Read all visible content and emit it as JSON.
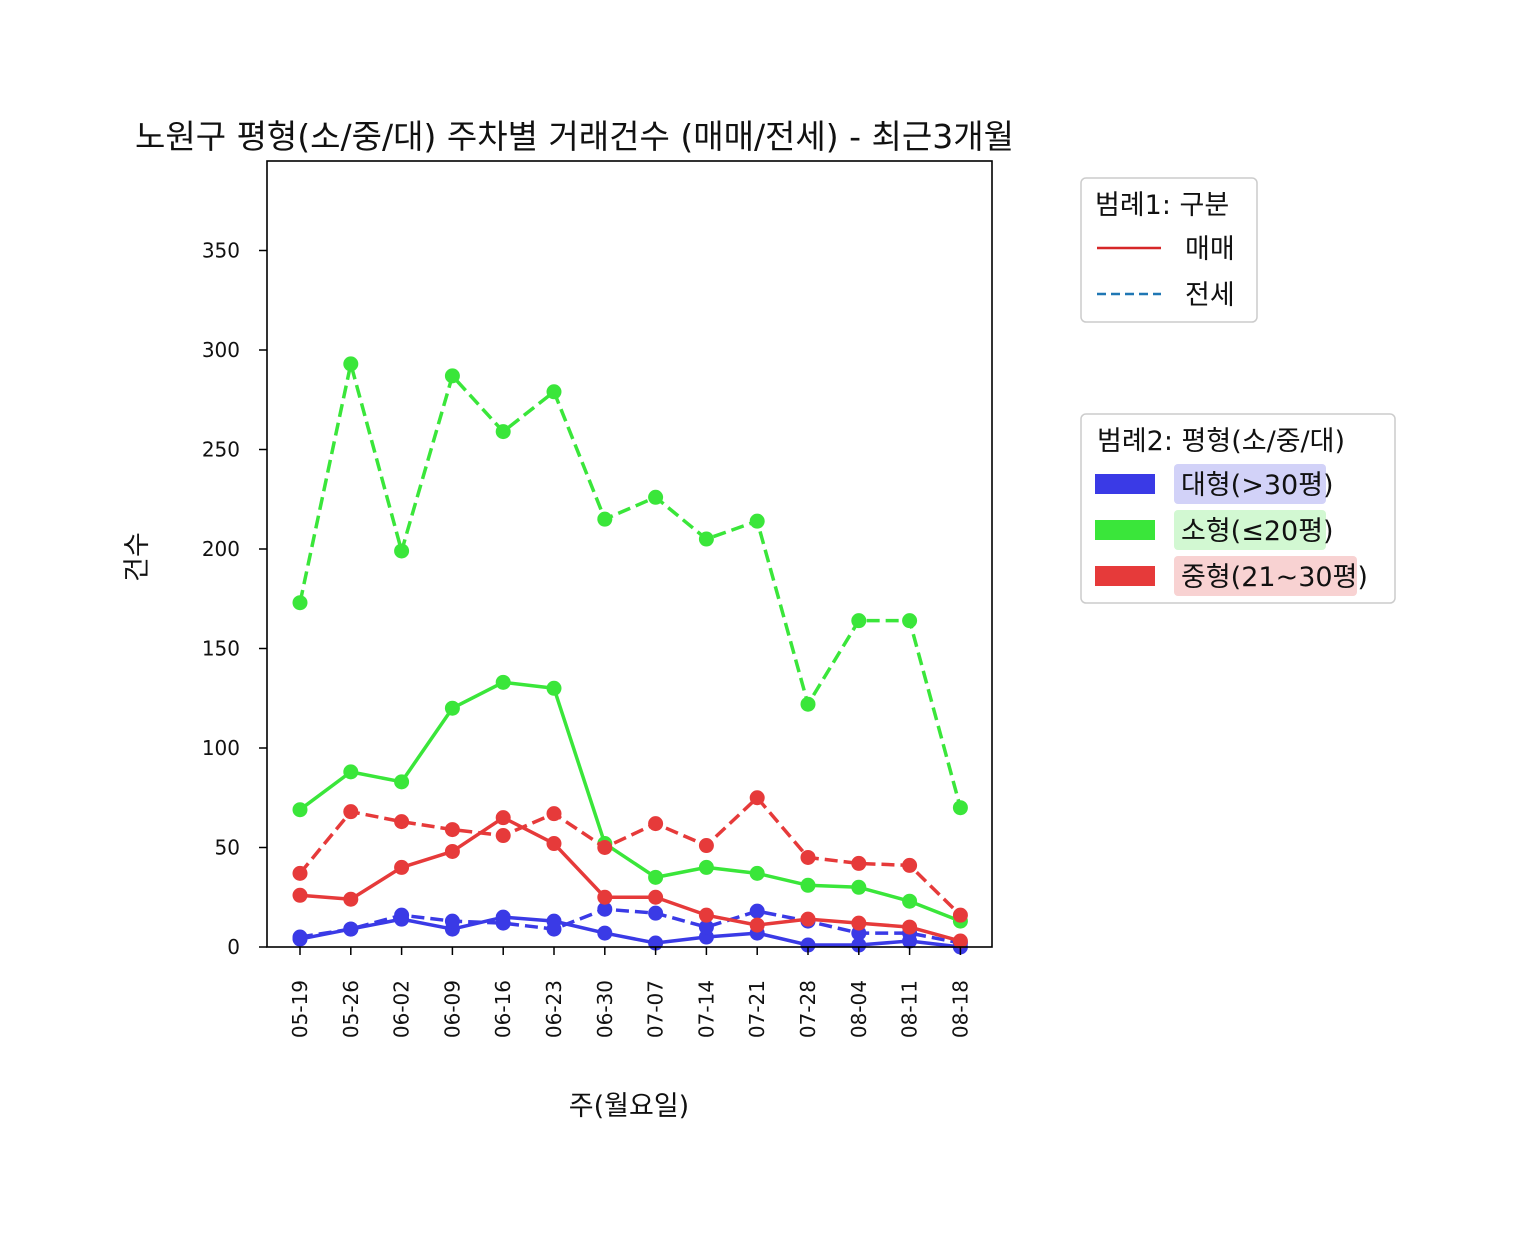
{
  "chart_data": {
    "type": "line",
    "title": "노원구 평형(소/중/대) 주차별 거래건수 (매매/전세) - 최근3개월",
    "xlabel": "주(월요일)",
    "ylabel": "건수",
    "ylim": [
      0,
      395
    ],
    "yticks": [
      0,
      50,
      100,
      150,
      200,
      250,
      300,
      350
    ],
    "grid": false,
    "categories": [
      "05-19",
      "05-26",
      "06-02",
      "06-09",
      "06-16",
      "06-23",
      "06-30",
      "07-07",
      "07-14",
      "07-21",
      "07-28",
      "08-04",
      "08-11",
      "08-18"
    ],
    "series": [
      {
        "name": "대형(>30평) 매매",
        "size": "large",
        "deal": "sale",
        "color": "#3a3ae6",
        "dash": false,
        "values": [
          4,
          9,
          14,
          9,
          15,
          13,
          7,
          2,
          5,
          7,
          1,
          1,
          3,
          0
        ]
      },
      {
        "name": "대형(>30평) 전세",
        "size": "large",
        "deal": "jeonse",
        "color": "#3a3ae6",
        "dash": true,
        "values": [
          5,
          9,
          16,
          13,
          12,
          9,
          19,
          17,
          10,
          18,
          13,
          7,
          7,
          2
        ]
      },
      {
        "name": "소형(≤20평) 매매",
        "size": "small",
        "deal": "sale",
        "color": "#3ae63a",
        "dash": false,
        "values": [
          69,
          88,
          83,
          120,
          133,
          130,
          52,
          35,
          40,
          37,
          31,
          30,
          23,
          13
        ]
      },
      {
        "name": "소형(≤20평) 전세",
        "size": "small",
        "deal": "jeonse",
        "color": "#3ae63a",
        "dash": true,
        "values": [
          173,
          293,
          199,
          287,
          259,
          279,
          215,
          226,
          205,
          214,
          122,
          164,
          164,
          70
        ]
      },
      {
        "name": "중형(21~30평) 매매",
        "size": "mid",
        "deal": "sale",
        "color": "#e63a3a",
        "dash": false,
        "values": [
          26,
          24,
          40,
          48,
          65,
          52,
          25,
          25,
          16,
          11,
          14,
          12,
          10,
          3
        ]
      },
      {
        "name": "중형(21~30평) 전세",
        "size": "mid",
        "deal": "jeonse",
        "color": "#e63a3a",
        "dash": true,
        "values": [
          37,
          68,
          63,
          59,
          56,
          67,
          50,
          62,
          51,
          75,
          45,
          42,
          41,
          16
        ]
      }
    ],
    "legend1": {
      "title": "범례1: 구분",
      "placement": "right-top",
      "items": [
        {
          "label": "매매",
          "color": "#d62728",
          "dash": false
        },
        {
          "label": "전세",
          "color": "#1f77b4",
          "dash": true
        }
      ]
    },
    "legend2": {
      "title": "범례2: 평형(소/중/대)",
      "placement": "right-middle",
      "items": [
        {
          "label": "대형(>30평)",
          "color": "#3a3ae6",
          "bg": "#d2d2f8"
        },
        {
          "label": "소형(≤20평)",
          "color": "#3ae63a",
          "bg": "#d2f8d2"
        },
        {
          "label": "중형(21~30평)",
          "color": "#e63a3a",
          "bg": "#f8d2d2"
        }
      ]
    }
  }
}
